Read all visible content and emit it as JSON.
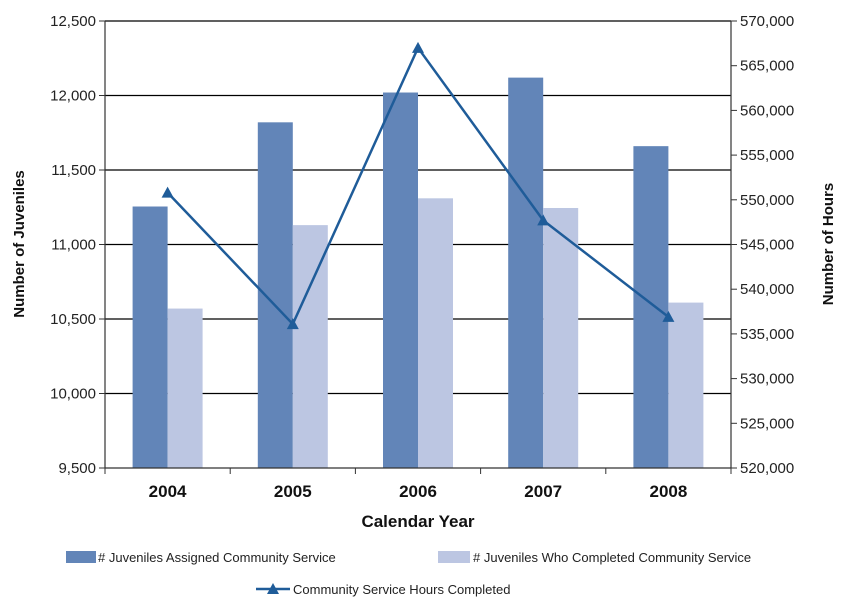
{
  "chart_data": {
    "type": "bar",
    "categories": [
      "2004",
      "2005",
      "2006",
      "2007",
      "2008"
    ],
    "xlabel": "Calendar Year",
    "ylabel": "Number of Juveniles",
    "y2label": "Number of Hours",
    "ylim": [
      9500,
      12500
    ],
    "y2lim": [
      520000,
      570000
    ],
    "yticks": [
      "9,500",
      "10,000",
      "10,500",
      "11,000",
      "11,500",
      "12,000",
      "12,500"
    ],
    "y2ticks": [
      "520,000",
      "525,000",
      "530,000",
      "535,000",
      "540,000",
      "545,000",
      "550,000",
      "555,000",
      "560,000",
      "565,000",
      "570,000"
    ],
    "grid": true,
    "legend_position": "bottom",
    "series": [
      {
        "name": "# Juveniles  Assigned Community Service",
        "type": "bar",
        "axis": "left",
        "color": "#6285b8",
        "values": [
          11255,
          11820,
          12020,
          12120,
          11660
        ]
      },
      {
        "name": "# Juveniles Who Completed Community Service",
        "type": "bar",
        "axis": "left",
        "color": "#bcc6e2",
        "values": [
          10570,
          11130,
          11310,
          11245,
          10610
        ]
      },
      {
        "name": "Community Service Hours Completed",
        "type": "line",
        "axis": "right",
        "color": "#1f5c99",
        "values": [
          550800,
          536100,
          567000,
          547700,
          536900
        ]
      }
    ]
  }
}
